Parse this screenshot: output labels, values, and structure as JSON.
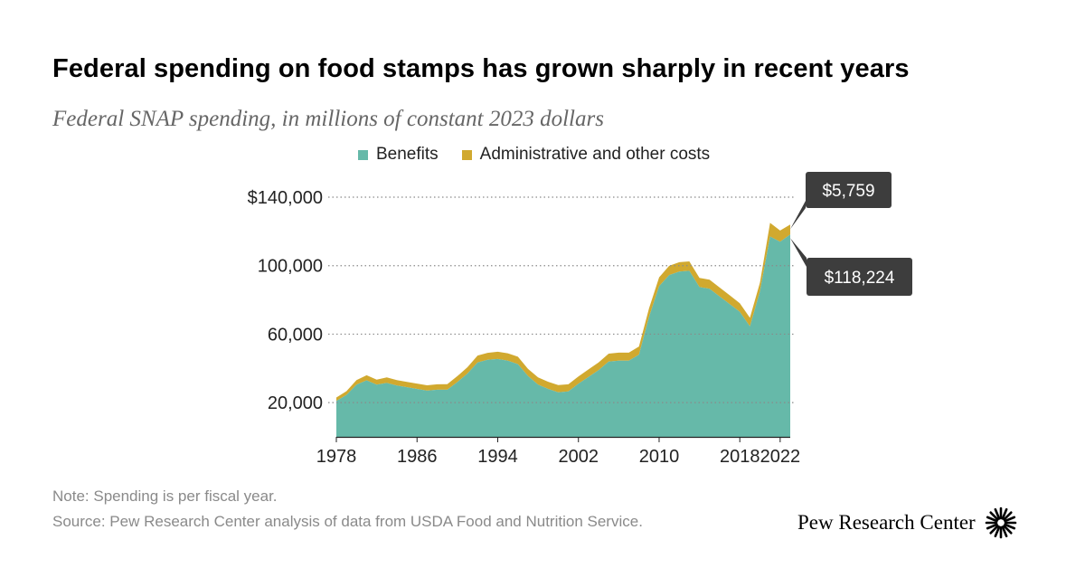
{
  "title": "Federal spending on food stamps has grown sharply in recent years",
  "subtitle": "Federal SNAP spending, in millions of constant 2023 dollars",
  "legend": [
    {
      "label": "Benefits",
      "color": "#66b9a9"
    },
    {
      "label": "Administrative and other costs",
      "color": "#d1a92f"
    }
  ],
  "note": "Note: Spending is per fiscal year.",
  "source": "Source: Pew Research Center analysis of data from USDA Food and Nutrition Service.",
  "brand": "Pew Research Center",
  "chart_data": {
    "type": "area",
    "stacked": true,
    "title": "Federal spending on food stamps has grown sharply in recent years",
    "subtitle": "Federal SNAP spending, in millions of constant 2023 dollars",
    "xlabel": "",
    "ylabel": "",
    "xlim": [
      1978,
      2023
    ],
    "ylim": [
      0,
      140000
    ],
    "x_ticks": [
      1978,
      1986,
      1994,
      2002,
      2010,
      2018,
      2022
    ],
    "y_ticks": [
      20000,
      60000,
      100000,
      140000
    ],
    "y_tick_labels": [
      "20,000",
      "60,000",
      "100,000",
      "$140,000"
    ],
    "grid": "horizontal dotted",
    "legend_position": "top",
    "x": [
      1978,
      1979,
      1980,
      1981,
      1982,
      1983,
      1984,
      1985,
      1986,
      1987,
      1988,
      1989,
      1990,
      1991,
      1992,
      1993,
      1994,
      1995,
      1996,
      1997,
      1998,
      1999,
      2000,
      2001,
      2002,
      2003,
      2004,
      2005,
      2006,
      2007,
      2008,
      2009,
      2010,
      2011,
      2012,
      2013,
      2014,
      2015,
      2016,
      2017,
      2018,
      2019,
      2020,
      2021,
      2022,
      2023
    ],
    "series": [
      {
        "name": "Benefits",
        "color": "#66b9a9",
        "values": [
          21000,
          24500,
          30500,
          33000,
          30500,
          31500,
          30000,
          29000,
          28000,
          27000,
          27500,
          27500,
          32000,
          37000,
          43500,
          45000,
          45500,
          44500,
          42500,
          35500,
          30500,
          28000,
          26000,
          26500,
          31000,
          35000,
          39000,
          44000,
          44500,
          44500,
          48000,
          70000,
          88000,
          94500,
          96500,
          97000,
          87500,
          86500,
          82000,
          77500,
          73000,
          64500,
          85000,
          117000,
          114000,
          118224
        ]
      },
      {
        "name": "Administrative and other costs",
        "color": "#d1a92f",
        "values": [
          2000,
          2200,
          2700,
          3000,
          2900,
          3200,
          3100,
          3100,
          3100,
          3100,
          3200,
          3300,
          3500,
          3700,
          4000,
          4100,
          4200,
          4300,
          4300,
          4200,
          4200,
          4200,
          4200,
          4200,
          4300,
          4400,
          4500,
          4600,
          4700,
          4700,
          4800,
          5000,
          5200,
          5400,
          5500,
          5500,
          5300,
          5300,
          5200,
          5200,
          5100,
          5000,
          5100,
          8000,
          6500,
          5759
        ]
      }
    ],
    "annotations": [
      {
        "label": "$5,759",
        "x": 2023,
        "series": "Administrative and other costs"
      },
      {
        "label": "$118,224",
        "x": 2023,
        "series": "Benefits"
      }
    ]
  }
}
